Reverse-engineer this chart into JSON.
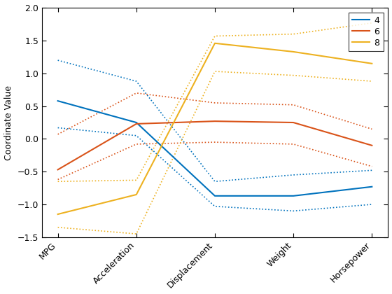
{
  "x_labels": [
    "MPG",
    "Acceleration",
    "Displacement",
    "Weight",
    "Horsepower"
  ],
  "x_positions": [
    0,
    1,
    2,
    3,
    4
  ],
  "groups": {
    "4": {
      "color": "#0072BD",
      "mean": [
        0.58,
        0.25,
        -0.87,
        -0.87,
        -0.73
      ],
      "upper": [
        1.2,
        0.88,
        -0.65,
        -0.55,
        -0.48
      ],
      "lower": [
        0.17,
        0.05,
        -1.03,
        -1.1,
        -1.0
      ]
    },
    "6": {
      "color": "#D95319",
      "mean": [
        -0.47,
        0.23,
        0.27,
        0.25,
        -0.1
      ],
      "upper": [
        0.07,
        0.7,
        0.55,
        0.52,
        0.15
      ],
      "lower": [
        -0.62,
        -0.08,
        -0.05,
        -0.08,
        -0.42
      ]
    },
    "8": {
      "color": "#EDB120",
      "mean": [
        -1.15,
        -0.85,
        1.46,
        1.33,
        1.15
      ],
      "upper": [
        -0.65,
        -0.63,
        1.57,
        1.6,
        1.77
      ],
      "lower": [
        -1.35,
        -1.45,
        1.03,
        0.97,
        0.88
      ]
    }
  },
  "ylabel": "Coordinate Value",
  "ylim": [
    -1.5,
    2.0
  ],
  "yticks": [
    -1.5,
    -1.0,
    -0.5,
    0.0,
    0.5,
    1.0,
    1.5,
    2.0
  ],
  "legend_labels": [
    "4",
    "6",
    "8"
  ],
  "figsize": [
    5.6,
    4.2
  ],
  "dpi": 100,
  "background_color": "#ffffff",
  "linewidth_solid": 1.5,
  "linewidth_dotted": 1.2
}
